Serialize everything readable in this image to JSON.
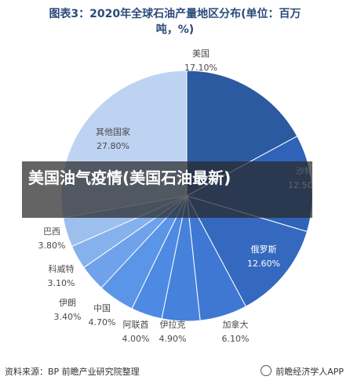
{
  "title": {
    "line1": "图表3：2020年全球石油产量地区分布(单位：百万",
    "line2": "吨，%)"
  },
  "overlay": {
    "text": "美国油气疫情(美国石油最新)"
  },
  "footer": {
    "source": "资料来源：BP 前瞻产业研究院整理",
    "brand": "前瞻经济学人APP"
  },
  "chart_data": {
    "type": "pie",
    "title": "2020年全球石油产量地区分布(单位：百万吨，%)",
    "slices": [
      {
        "name": "美国",
        "value": 17.1,
        "label": "17.10%",
        "color": "#2c5aa0"
      },
      {
        "name": "沙特",
        "value": 12.5,
        "label": "12.50%",
        "color": "#2f63b8"
      },
      {
        "name": "俄罗斯",
        "value": 12.6,
        "label": "12.60%",
        "color": "#3569c0"
      },
      {
        "name": "加拿大",
        "value": 6.1,
        "label": "6.10%",
        "color": "#3f78d3"
      },
      {
        "name": "伊拉克",
        "value": 4.9,
        "label": "4.90%",
        "color": "#4682dc"
      },
      {
        "name": "阿联酋",
        "value": 4.0,
        "label": "4.00%",
        "color": "#4e8ae3"
      },
      {
        "name": "中国",
        "value": 4.7,
        "label": "4.70%",
        "color": "#5b95e8"
      },
      {
        "name": "伊朗",
        "value": 3.4,
        "label": "3.40%",
        "color": "#6fa2ea"
      },
      {
        "name": "科威特",
        "value": 3.1,
        "label": "3.10%",
        "color": "#85b1ec"
      },
      {
        "name": "巴西",
        "value": 3.8,
        "label": "3.80%",
        "color": "#9cbfee"
      },
      {
        "name": "其他国家",
        "value": 27.8,
        "label": "27.80%",
        "color": "#bed3f2"
      }
    ]
  }
}
